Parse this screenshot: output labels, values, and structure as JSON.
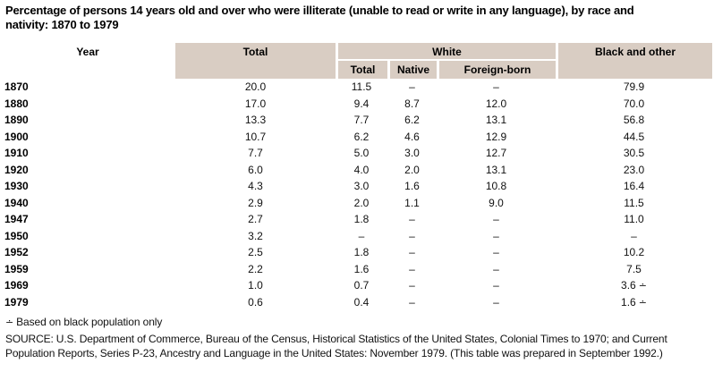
{
  "title_lines": [
    "Percentage of persons 14 years old and over who were illiterate (unable to read or write in any language), by race and",
    "nativity: 1870 to 1979"
  ],
  "table": {
    "header": {
      "year": "Year",
      "total": "Total",
      "white_group": "White",
      "white_sub": [
        "Total",
        "Native",
        "Foreign-born"
      ],
      "black": "Black and other"
    },
    "rows": [
      {
        "year": "1870",
        "total": "20.0",
        "white_total": "11.5",
        "native": "–",
        "foreign_born": "–",
        "black": "79.9",
        "black_footnote": false
      },
      {
        "year": "1880",
        "total": "17.0",
        "white_total": "9.4",
        "native": "8.7",
        "foreign_born": "12.0",
        "black": "70.0",
        "black_footnote": false
      },
      {
        "year": "1890",
        "total": "13.3",
        "white_total": "7.7",
        "native": "6.2",
        "foreign_born": "13.1",
        "black": "56.8",
        "black_footnote": false
      },
      {
        "year": "1900",
        "total": "10.7",
        "white_total": "6.2",
        "native": "4.6",
        "foreign_born": "12.9",
        "black": "44.5",
        "black_footnote": false
      },
      {
        "year": "1910",
        "total": "7.7",
        "white_total": "5.0",
        "native": "3.0",
        "foreign_born": "12.7",
        "black": "30.5",
        "black_footnote": false
      },
      {
        "year": "1920",
        "total": "6.0",
        "white_total": "4.0",
        "native": "2.0",
        "foreign_born": "13.1",
        "black": "23.0",
        "black_footnote": false
      },
      {
        "year": "1930",
        "total": "4.3",
        "white_total": "3.0",
        "native": "1.6",
        "foreign_born": "10.8",
        "black": "16.4",
        "black_footnote": false
      },
      {
        "year": "1940",
        "total": "2.9",
        "white_total": "2.0",
        "native": "1.1",
        "foreign_born": "9.0",
        "black": "11.5",
        "black_footnote": false
      },
      {
        "year": "1947",
        "total": "2.7",
        "white_total": "1.8",
        "native": "–",
        "foreign_born": "–",
        "black": "11.0",
        "black_footnote": false
      },
      {
        "year": "1950",
        "total": "3.2",
        "white_total": "–",
        "native": "–",
        "foreign_born": "–",
        "black": "–",
        "black_footnote": false
      },
      {
        "year": "1952",
        "total": "2.5",
        "white_total": "1.8",
        "native": "–",
        "foreign_born": "–",
        "black": "10.2",
        "black_footnote": false
      },
      {
        "year": "1959",
        "total": "2.2",
        "white_total": "1.6",
        "native": "–",
        "foreign_born": "–",
        "black": "7.5",
        "black_footnote": false
      },
      {
        "year": "1969",
        "total": "1.0",
        "white_total": "0.7",
        "native": "–",
        "foreign_born": "–",
        "black": "3.6",
        "black_footnote": true
      },
      {
        "year": "1979",
        "total": "0.6",
        "white_total": "0.4",
        "native": "–",
        "foreign_born": "–",
        "black": "1.6",
        "black_footnote": true
      }
    ]
  },
  "footnote": {
    "marker": "∸",
    "text": "Based on black population only"
  },
  "source_lines": [
    "SOURCE: U.S. Department of Commerce, Bureau of the Census, Historical Statistics of the United States, Colonial Times to 1970; and Current",
    "Population Reports, Series P-23, Ancestry and Language in the United States: November 1979. (This table was prepared in September 1992.)"
  ],
  "colors": {
    "header_bg": "#d9cdc3",
    "text": "#111111"
  }
}
